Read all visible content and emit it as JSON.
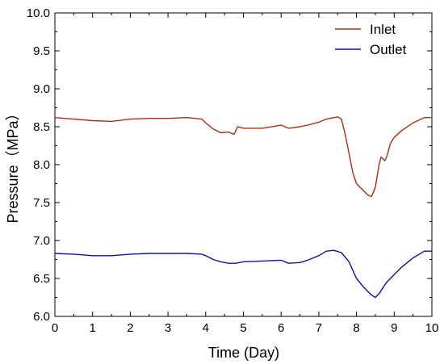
{
  "chart_data": {
    "type": "line",
    "xlabel": "Time (Day)",
    "ylabel": "Pressure（MPa）",
    "xlim": [
      0,
      10
    ],
    "ylim": [
      6.0,
      10.0
    ],
    "x_ticks": [
      "0",
      "1",
      "2",
      "3",
      "4",
      "5",
      "6",
      "7",
      "8",
      "9",
      "10"
    ],
    "y_ticks": [
      "6.0",
      "6.5",
      "7.0",
      "7.5",
      "8.0",
      "8.5",
      "9.0",
      "9.5",
      "10.0"
    ],
    "grid": false,
    "legend_position": "top-right",
    "series": [
      {
        "name": "Inlet",
        "color": "#b22d10",
        "x": [
          0,
          0.5,
          1,
          1.5,
          2,
          2.5,
          3,
          3.5,
          3.9,
          4.0,
          4.2,
          4.4,
          4.6,
          4.75,
          4.85,
          5.0,
          5.5,
          6.0,
          6.2,
          6.5,
          6.7,
          7.0,
          7.2,
          7.5,
          7.6,
          7.7,
          7.8,
          7.9,
          8.0,
          8.1,
          8.2,
          8.3,
          8.4,
          8.5,
          8.6,
          8.65,
          8.7,
          8.75,
          8.8,
          8.9,
          9.0,
          9.2,
          9.5,
          9.8,
          10.0
        ],
        "y": [
          8.62,
          8.6,
          8.58,
          8.57,
          8.6,
          8.61,
          8.61,
          8.62,
          8.6,
          8.55,
          8.47,
          8.42,
          8.43,
          8.4,
          8.5,
          8.48,
          8.48,
          8.52,
          8.48,
          8.5,
          8.52,
          8.56,
          8.6,
          8.63,
          8.6,
          8.4,
          8.15,
          7.9,
          7.75,
          7.7,
          7.65,
          7.6,
          7.58,
          7.7,
          8.0,
          8.1,
          8.08,
          8.05,
          8.1,
          8.28,
          8.36,
          8.45,
          8.55,
          8.62,
          8.62
        ]
      },
      {
        "name": "Outlet",
        "color": "#1010b0",
        "x": [
          0,
          0.5,
          1,
          1.5,
          2,
          2.5,
          3,
          3.5,
          3.9,
          4.0,
          4.2,
          4.4,
          4.6,
          4.8,
          5.0,
          5.5,
          6.0,
          6.2,
          6.5,
          6.7,
          7.0,
          7.2,
          7.4,
          7.6,
          7.8,
          8.0,
          8.2,
          8.4,
          8.5,
          8.6,
          8.8,
          9.0,
          9.2,
          9.5,
          9.8,
          10.0
        ],
        "y": [
          6.83,
          6.82,
          6.8,
          6.8,
          6.82,
          6.83,
          6.83,
          6.83,
          6.82,
          6.8,
          6.75,
          6.72,
          6.7,
          6.7,
          6.72,
          6.73,
          6.74,
          6.7,
          6.71,
          6.74,
          6.8,
          6.86,
          6.87,
          6.84,
          6.72,
          6.5,
          6.38,
          6.28,
          6.25,
          6.3,
          6.45,
          6.55,
          6.65,
          6.77,
          6.86,
          6.86
        ]
      }
    ]
  },
  "colors": {
    "axis": "#000000",
    "background": "#ffffff"
  }
}
